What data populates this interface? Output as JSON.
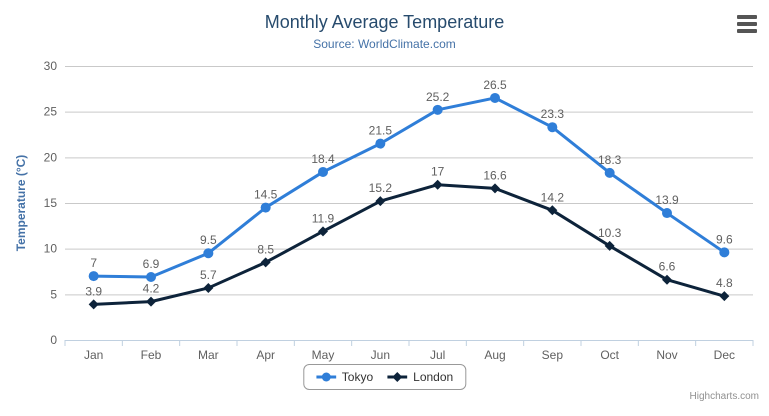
{
  "header": {
    "title": "Monthly Average Temperature",
    "subtitle": "Source: WorldClimate.com"
  },
  "credits": {
    "label": "Highcharts.com"
  },
  "menu": {
    "icon": "hamburger-menu-icon"
  },
  "palette": {
    "title_color": "#274b6d",
    "subtitle_color": "#4572A7",
    "yaxis_title_color": "#4572A7",
    "axis_label_color": "#606060",
    "grid_color": "#C9C9C9",
    "xaxis_line_color": "#C0D0E0",
    "data_label_color": "#606060",
    "legend_text_color": "#333333",
    "credits_color": "#909090",
    "tokyo_color": "#2f7ed8",
    "london_color": "#0d233a"
  },
  "chart_data": {
    "type": "line",
    "title": "Monthly Average Temperature",
    "subtitle": "Source: WorldClimate.com",
    "categories": [
      "Jan",
      "Feb",
      "Mar",
      "Apr",
      "May",
      "Jun",
      "Jul",
      "Aug",
      "Sep",
      "Oct",
      "Nov",
      "Dec"
    ],
    "series": [
      {
        "name": "Tokyo",
        "color": "#2f7ed8",
        "marker": "circle",
        "values": [
          7,
          6.9,
          9.5,
          14.5,
          18.4,
          21.5,
          25.2,
          26.5,
          23.3,
          18.3,
          13.9,
          9.6
        ]
      },
      {
        "name": "London",
        "color": "#0d233a",
        "marker": "diamond",
        "values": [
          3.9,
          4.2,
          5.7,
          8.5,
          11.9,
          15.2,
          17,
          16.6,
          14.2,
          10.3,
          6.6,
          4.8
        ]
      }
    ],
    "xlabel": "",
    "ylabel": "Temperature (°C)",
    "ylim": [
      0,
      30
    ],
    "yticks": [
      0,
      5,
      10,
      15,
      20,
      25,
      30
    ],
    "grid": true,
    "data_labels": true,
    "legend_position": "bottom-center"
  }
}
